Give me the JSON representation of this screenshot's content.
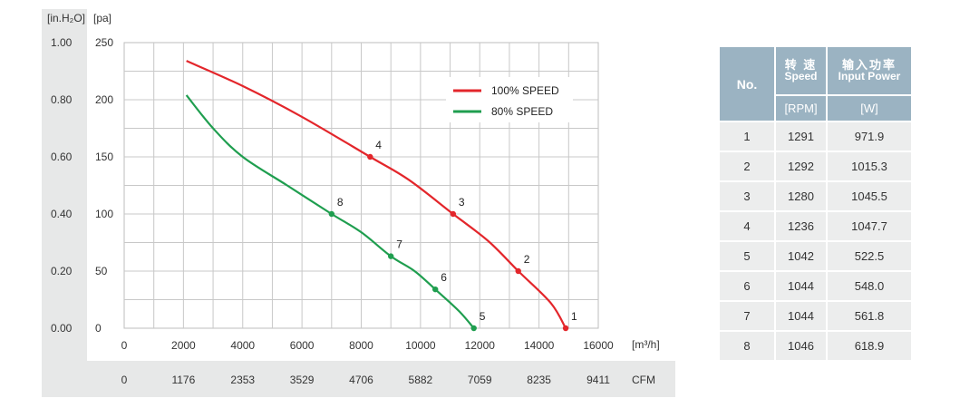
{
  "chart_data": {
    "type": "line",
    "units": {
      "pressure_inh2o": "[in.H₂O]",
      "pressure_pa": "[pa]",
      "flow_m3h": "[m³/h]",
      "flow_cfm": "CFM"
    },
    "x_ticks_m3h": [
      "0",
      "2000",
      "4000",
      "6000",
      "8000",
      "10000",
      "12000",
      "14000",
      "16000"
    ],
    "x_ticks_cfm": [
      "0",
      "1176",
      "2353",
      "3529",
      "4706",
      "5882",
      "7059",
      "8235",
      "9411"
    ],
    "y_ticks_pa": [
      "250",
      "200",
      "150",
      "100",
      "50",
      "0"
    ],
    "y_ticks_inh2o": [
      "1.00",
      "0.80",
      "0.60",
      "0.40",
      "0.20",
      "0.00"
    ],
    "xlim": [
      0,
      16000
    ],
    "ylim": [
      0,
      250
    ],
    "grid": true,
    "legend_position": "top-right",
    "series": [
      {
        "name": "100% SPEED",
        "color": "#e3262b",
        "points": [
          [
            2100,
            234
          ],
          [
            4000,
            212
          ],
          [
            6000,
            185
          ],
          [
            8300,
            150
          ],
          [
            9600,
            130
          ],
          [
            11100,
            100
          ],
          [
            12300,
            76
          ],
          [
            13300,
            50
          ],
          [
            14400,
            22
          ],
          [
            14900,
            0
          ]
        ]
      },
      {
        "name": "80% SPEED",
        "color": "#1f9e4f",
        "points": [
          [
            2100,
            204
          ],
          [
            3000,
            175
          ],
          [
            4000,
            150
          ],
          [
            5500,
            125
          ],
          [
            7000,
            100
          ],
          [
            8000,
            84
          ],
          [
            9000,
            63
          ],
          [
            9800,
            50
          ],
          [
            10500,
            34
          ],
          [
            11300,
            15
          ],
          [
            11800,
            0
          ]
        ]
      }
    ],
    "labeled_points": [
      {
        "label": "1",
        "x": 14900,
        "y": 0,
        "series": 0
      },
      {
        "label": "2",
        "x": 13300,
        "y": 50,
        "series": 0
      },
      {
        "label": "3",
        "x": 11100,
        "y": 100,
        "series": 0
      },
      {
        "label": "4",
        "x": 8300,
        "y": 150,
        "series": 0
      },
      {
        "label": "5",
        "x": 11800,
        "y": 0,
        "series": 1
      },
      {
        "label": "6",
        "x": 10500,
        "y": 34,
        "series": 1
      },
      {
        "label": "7",
        "x": 9000,
        "y": 63,
        "series": 1
      },
      {
        "label": "8",
        "x": 7000,
        "y": 100,
        "series": 1
      }
    ]
  },
  "table": {
    "header_no": "No.",
    "header_speed_zh": "转 速",
    "header_speed_en": "Speed",
    "header_power_zh": "输入功率",
    "header_power_en": "Input Power",
    "unit_speed": "[RPM]",
    "unit_power": "[W]",
    "rows": [
      {
        "no": "1",
        "rpm": "1291",
        "power": "971.9"
      },
      {
        "no": "2",
        "rpm": "1292",
        "power": "1015.3"
      },
      {
        "no": "3",
        "rpm": "1280",
        "power": "1045.5"
      },
      {
        "no": "4",
        "rpm": "1236",
        "power": "1047.7"
      },
      {
        "no": "5",
        "rpm": "1042",
        "power": "522.5"
      },
      {
        "no": "6",
        "rpm": "1044",
        "power": "548.0"
      },
      {
        "no": "7",
        "rpm": "1044",
        "power": "561.8"
      },
      {
        "no": "8",
        "rpm": "1046",
        "power": "618.9"
      }
    ]
  }
}
